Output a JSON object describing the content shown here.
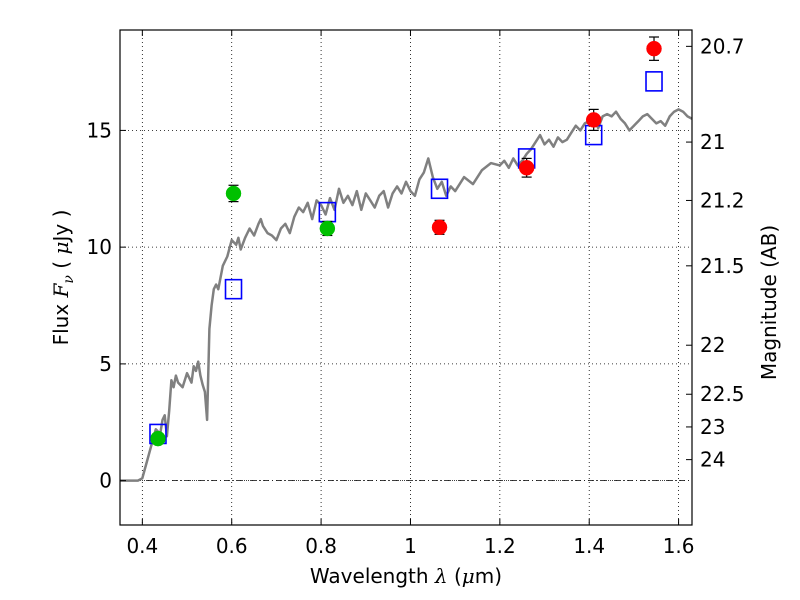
{
  "chart_data": {
    "type": "scatter",
    "xlabel": {
      "prefix": "Wavelength  ",
      "lambda": "λ",
      "unit_open": " (",
      "mu": "μ",
      "unit_rest": "m)"
    },
    "ylabel": {
      "prefix": "Flux  ",
      "F": "F",
      "nu": "ν",
      "unit_open": "  ( ",
      "mu": "μ",
      "unit_rest": "Jy )"
    },
    "y2label": "Magnitude (AB)",
    "xlim": [
      0.35,
      1.63
    ],
    "ylim": [
      -1.9,
      19.3
    ],
    "grid": true,
    "xticks": [
      {
        "value": 0.4,
        "label": "0.4"
      },
      {
        "value": 0.6,
        "label": "0.6"
      },
      {
        "value": 0.8,
        "label": "0.8"
      },
      {
        "value": 1.0,
        "label": "1"
      },
      {
        "value": 1.2,
        "label": "1.2"
      },
      {
        "value": 1.4,
        "label": "1.4"
      },
      {
        "value": 1.6,
        "label": "1.6"
      }
    ],
    "yticks": [
      {
        "value": 0,
        "label": "0"
      },
      {
        "value": 5,
        "label": "5"
      },
      {
        "value": 10,
        "label": "10"
      },
      {
        "value": 15,
        "label": "15"
      }
    ],
    "y2ticks": [
      {
        "flux": 18.6,
        "label": "20.7"
      },
      {
        "flux": 14.5,
        "label": "21"
      },
      {
        "flux": 12.0,
        "label": "21.2"
      },
      {
        "flux": 9.2,
        "label": "21.5"
      },
      {
        "flux": 5.8,
        "label": "22"
      },
      {
        "flux": 3.7,
        "label": "22.5"
      },
      {
        "flux": 2.3,
        "label": "23"
      },
      {
        "flux": 0.9,
        "label": "24"
      }
    ],
    "colors": {
      "model_line": "#808080",
      "green_points": "#00c000",
      "red_points": "#ff0000",
      "model_boxes": "#0000ff",
      "zero_line": "#000000"
    },
    "series": [
      {
        "type": "line",
        "points": [
          [
            0.35,
            0.0
          ],
          [
            0.39,
            0.0
          ],
          [
            0.4,
            0.1
          ],
          [
            0.41,
            0.8
          ],
          [
            0.42,
            1.5
          ],
          [
            0.43,
            2.2
          ],
          [
            0.44,
            2.0
          ],
          [
            0.445,
            2.6
          ],
          [
            0.45,
            2.8
          ],
          [
            0.455,
            1.9
          ],
          [
            0.46,
            3.0
          ],
          [
            0.465,
            4.3
          ],
          [
            0.47,
            4.0
          ],
          [
            0.475,
            4.5
          ],
          [
            0.48,
            4.2
          ],
          [
            0.49,
            4.0
          ],
          [
            0.5,
            4.6
          ],
          [
            0.51,
            4.2
          ],
          [
            0.515,
            4.9
          ],
          [
            0.52,
            4.7
          ],
          [
            0.525,
            5.1
          ],
          [
            0.53,
            4.5
          ],
          [
            0.535,
            4.1
          ],
          [
            0.54,
            3.8
          ],
          [
            0.545,
            2.6
          ],
          [
            0.55,
            6.5
          ],
          [
            0.555,
            7.5
          ],
          [
            0.56,
            8.2
          ],
          [
            0.565,
            8.4
          ],
          [
            0.57,
            8.2
          ],
          [
            0.58,
            9.2
          ],
          [
            0.59,
            9.6
          ],
          [
            0.6,
            10.3
          ],
          [
            0.61,
            10.1
          ],
          [
            0.615,
            10.4
          ],
          [
            0.62,
            9.9
          ],
          [
            0.63,
            10.4
          ],
          [
            0.64,
            10.8
          ],
          [
            0.65,
            10.5
          ],
          [
            0.66,
            11.0
          ],
          [
            0.665,
            11.2
          ],
          [
            0.67,
            10.9
          ],
          [
            0.68,
            10.6
          ],
          [
            0.69,
            10.5
          ],
          [
            0.7,
            10.3
          ],
          [
            0.71,
            10.8
          ],
          [
            0.72,
            11.0
          ],
          [
            0.73,
            10.6
          ],
          [
            0.74,
            11.3
          ],
          [
            0.75,
            11.7
          ],
          [
            0.76,
            11.5
          ],
          [
            0.77,
            11.9
          ],
          [
            0.78,
            11.2
          ],
          [
            0.79,
            12.0
          ],
          [
            0.8,
            11.8
          ],
          [
            0.81,
            11.4
          ],
          [
            0.82,
            12.1
          ],
          [
            0.83,
            11.6
          ],
          [
            0.84,
            12.5
          ],
          [
            0.85,
            11.9
          ],
          [
            0.86,
            12.2
          ],
          [
            0.87,
            11.8
          ],
          [
            0.88,
            12.4
          ],
          [
            0.89,
            11.6
          ],
          [
            0.9,
            12.3
          ],
          [
            0.91,
            12.0
          ],
          [
            0.92,
            11.7
          ],
          [
            0.93,
            12.2
          ],
          [
            0.94,
            12.4
          ],
          [
            0.95,
            11.7
          ],
          [
            0.96,
            12.3
          ],
          [
            0.97,
            12.6
          ],
          [
            0.98,
            12.3
          ],
          [
            0.99,
            12.8
          ],
          [
            1.0,
            12.4
          ],
          [
            1.01,
            12.2
          ],
          [
            1.02,
            12.9
          ],
          [
            1.03,
            13.2
          ],
          [
            1.04,
            13.8
          ],
          [
            1.05,
            13.0
          ],
          [
            1.06,
            12.5
          ],
          [
            1.07,
            12.8
          ],
          [
            1.08,
            12.2
          ],
          [
            1.09,
            12.6
          ],
          [
            1.1,
            12.4
          ],
          [
            1.12,
            13.0
          ],
          [
            1.14,
            12.7
          ],
          [
            1.16,
            13.3
          ],
          [
            1.18,
            13.6
          ],
          [
            1.2,
            13.5
          ],
          [
            1.21,
            13.7
          ],
          [
            1.22,
            13.4
          ],
          [
            1.23,
            13.8
          ],
          [
            1.24,
            13.5
          ],
          [
            1.25,
            13.7
          ],
          [
            1.26,
            14.0
          ],
          [
            1.27,
            14.2
          ],
          [
            1.28,
            14.5
          ],
          [
            1.29,
            14.8
          ],
          [
            1.3,
            14.4
          ],
          [
            1.31,
            14.6
          ],
          [
            1.32,
            14.3
          ],
          [
            1.33,
            14.7
          ],
          [
            1.34,
            14.5
          ],
          [
            1.35,
            14.6
          ],
          [
            1.36,
            14.9
          ],
          [
            1.37,
            15.2
          ],
          [
            1.38,
            15.0
          ],
          [
            1.39,
            15.3
          ],
          [
            1.4,
            15.4
          ],
          [
            1.41,
            15.5
          ],
          [
            1.42,
            15.1
          ],
          [
            1.43,
            15.6
          ],
          [
            1.44,
            15.7
          ],
          [
            1.45,
            15.6
          ],
          [
            1.46,
            15.8
          ],
          [
            1.47,
            15.5
          ],
          [
            1.48,
            15.3
          ],
          [
            1.49,
            15.0
          ],
          [
            1.5,
            15.2
          ],
          [
            1.51,
            15.4
          ],
          [
            1.52,
            15.6
          ],
          [
            1.53,
            15.7
          ],
          [
            1.54,
            15.5
          ],
          [
            1.55,
            15.3
          ],
          [
            1.56,
            15.4
          ],
          [
            1.57,
            15.2
          ],
          [
            1.58,
            15.6
          ],
          [
            1.59,
            15.8
          ],
          [
            1.6,
            15.9
          ],
          [
            1.61,
            15.8
          ],
          [
            1.62,
            15.6
          ],
          [
            1.63,
            15.5
          ]
        ]
      },
      {
        "type": "scatter",
        "points": [
          {
            "x": 0.435,
            "y": 1.8,
            "err": 0.2
          },
          {
            "x": 0.604,
            "y": 12.3,
            "err": 0.35
          },
          {
            "x": 0.814,
            "y": 10.8,
            "err": 0.3
          }
        ]
      },
      {
        "type": "scatter",
        "points": [
          {
            "x": 1.065,
            "y": 10.85,
            "err": 0.3
          },
          {
            "x": 1.26,
            "y": 13.4,
            "err": 0.4
          },
          {
            "x": 1.41,
            "y": 15.45,
            "err": 0.45
          },
          {
            "x": 1.545,
            "y": 18.5,
            "err": 0.5
          }
        ]
      },
      {
        "type": "scatter",
        "points": [
          {
            "x": 0.435,
            "y": 2.0
          },
          {
            "x": 0.604,
            "y": 8.2
          },
          {
            "x": 0.814,
            "y": 11.5
          },
          {
            "x": 1.065,
            "y": 12.5
          },
          {
            "x": 1.26,
            "y": 13.8
          },
          {
            "x": 1.41,
            "y": 14.8
          },
          {
            "x": 1.545,
            "y": 17.1
          }
        ]
      }
    ]
  }
}
